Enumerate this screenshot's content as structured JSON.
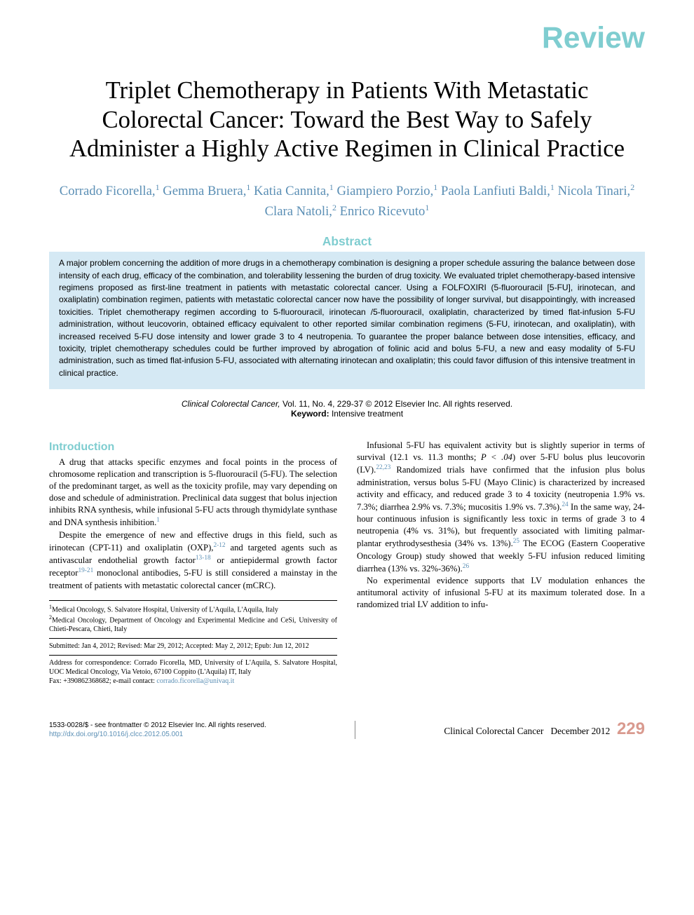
{
  "colors": {
    "accent_teal": "#7fcdd0",
    "link_blue": "#5b8fb5",
    "abstract_bg": "#d5e9f4",
    "page_num": "#d99a8f",
    "text": "#000000"
  },
  "banner": {
    "label": "Review"
  },
  "title": "Triplet Chemotherapy in Patients With Metastatic Colorectal Cancer: Toward the Best Way to Safely Administer a Highly Active Regimen in Clinical Practice",
  "authors_html": "Corrado Ficorella,<sup>1</sup> Gemma Bruera,<sup>1</sup> Katia Cannita,<sup>1</sup> Giampiero Porzio,<sup>1</sup> Paola Lanfiuti Baldi,<sup>1</sup> Nicola Tinari,<sup>2</sup> Clara Natoli,<sup>2</sup> Enrico Ricevuto<sup>1</sup>",
  "abstract": {
    "heading": "Abstract",
    "body": "A major problem concerning the addition of more drugs in a chemotherapy combination is designing a proper schedule assuring the balance between dose intensity of each drug, efficacy of the combination, and tolerability lessening the burden of drug toxicity. We evaluated triplet chemotherapy-based intensive regimens proposed as first-line treatment in patients with metastatic colorectal cancer. Using a FOLFOXIRI (5-fluorouracil [5-FU], irinotecan, and oxaliplatin) combination regimen, patients with metastatic colorectal cancer now have the possibility of longer survival, but disappointingly, with increased toxicities. Triplet chemotherapy regimen according to 5-fluorouracil, irinotecan /5-fluorouracil, oxaliplatin, characterized by timed flat-infusion 5-FU administration, without leucovorin, obtained efficacy equivalent to other reported similar combination regimens (5-FU, irinotecan, and oxaliplatin), with increased received 5-FU dose intensity and lower grade 3 to 4 neutropenia. To guarantee the proper balance between dose intensities, efficacy, and toxicity, triplet chemotherapy schedules could be further improved by abrogation of folinic acid and bolus 5-FU, a new and easy modality of 5-FU administration, such as timed flat-infusion 5-FU, associated with alternating irinotecan and oxaliplatin; this could favor diffusion of this intensive treatment in clinical practice."
  },
  "citation": {
    "journal": "Clinical Colorectal Cancer,",
    "vol": " Vol. 11, No. 4, 229-37 © 2012 Elsevier Inc. All rights reserved.",
    "keyword_label": "Keyword:",
    "keyword": " Intensive treatment"
  },
  "intro": {
    "heading": "Introduction",
    "p1": "A drug that attacks specific enzymes and focal points in the process of chromosome replication and transcription is 5-fluorouracil (5-FU). The selection of the predominant target, as well as the toxicity profile, may vary depending on dose and schedule of administration. Preclinical data suggest that bolus injection inhibits RNA synthesis, while infusional 5-FU acts through thymidylate synthase and DNA synthesis inhibition.",
    "p1_ref": "1",
    "p2a": "Despite the emergence of new and effective drugs in this field, such as irinotecan (CPT-11) and oxaliplatin (OXP),",
    "p2_ref1": "2-12",
    "p2b": " and targeted agents such as antivascular endothelial growth factor",
    "p2_ref2": "13-18",
    "p2c": " or antiepidermal growth factor receptor",
    "p2_ref3": "19-21",
    "p2d": " monoclonal antibodies, 5-FU is still considered a mainstay in the treatment of patients with metastatic colorectal cancer (mCRC).",
    "p3a": "Infusional 5-FU has equivalent activity but is slightly superior in terms of survival (12.1 vs. 11.3 months; ",
    "p3_stat": "P < .04",
    "p3b": ") over 5-FU bolus plus leucovorin (LV).",
    "p3_ref1": "22,23",
    "p3c": " Randomized trials have confirmed that the infusion plus bolus administration, versus bolus 5-FU (Mayo Clinic) is characterized by increased activity and efficacy, and reduced grade 3 to 4 toxicity (neutropenia 1.9% vs. 7.3%; diarrhea 2.9% vs. 7.3%; mucositis 1.9% vs. 7.3%).",
    "p3_ref2": "24",
    "p3d": " In the same way, 24-hour continuous infusion is significantly less toxic in terms of grade 3 to 4 neutropenia (4% vs. 31%), but frequently associated with limiting palmar-plantar erythrodysesthesia (34% vs. 13%).",
    "p3_ref3": "25",
    "p3e": " The ECOG (Eastern Cooperative Oncology Group) study showed that weekly 5-FU infusion reduced limiting diarrhea (13% vs. 32%-36%).",
    "p3_ref4": "26",
    "p4": "No experimental evidence supports that LV modulation enhances the antitumoral activity of infusional 5-FU at its maximum tolerated dose. In a randomized trial LV addition to infu-"
  },
  "affiliations": {
    "a1": "Medical Oncology, S. Salvatore Hospital, University of L'Aquila, L'Aquila, Italy",
    "a2": "Medical Oncology, Department of Oncology and Experimental Medicine and CeSi, University of Chieti-Pescara, Chieti, Italy",
    "dates": "Submitted: Jan 4, 2012; Revised: Mar 29, 2012; Accepted: May 2, 2012; Epub: Jun 12, 2012",
    "corr1": "Address for correspondence: Corrado Ficorella, MD, University of L'Aquila, S. Salvatore Hospital, UOC Medical Oncology, Via Vetoio, 67100 Coppito (L'Aquila) IT, Italy",
    "corr2a": "Fax: +390862368682; e-mail contact: ",
    "corr2_email": "corrado.ficorella@univaq.it"
  },
  "footer": {
    "left1": "1533-0028/$ - see frontmatter © 2012 Elsevier Inc. All rights reserved.",
    "doi": "http://dx.doi.org/10.1016/j.clcc.2012.05.001",
    "journal": "Clinical Colorectal Cancer",
    "issue": "   December 2012",
    "page": "229"
  }
}
